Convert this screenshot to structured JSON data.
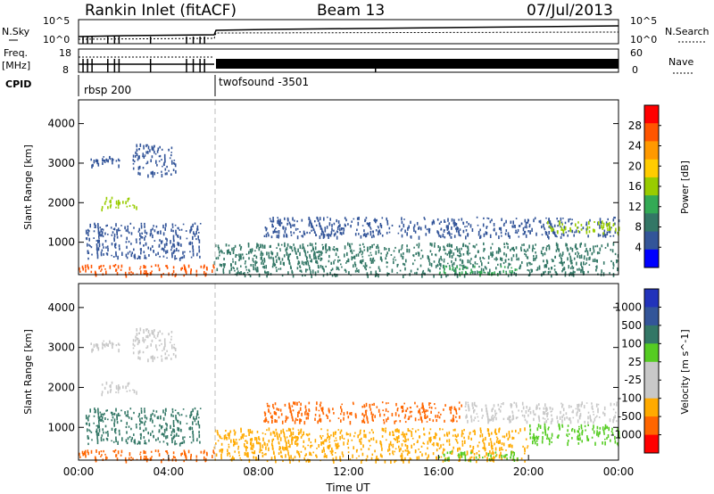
{
  "header": {
    "title": "Rankin Inlet (fitACF)",
    "beam": "Beam 13",
    "date": "07/Jul/2013"
  },
  "status_panel": {
    "nsky_label": "N.Sky",
    "nsky_ticks": [
      "10^5",
      "10^0"
    ],
    "nsearch_label": "N.Search",
    "nsearch_ticks": [
      "10^5",
      "10^0"
    ],
    "freq_label": "Freq.",
    "freq_unit": "[MHz]",
    "freq_ticks": [
      "18",
      "8"
    ],
    "nave_label": "Nave",
    "nave_ticks": [
      "60",
      "0"
    ],
    "cpid_label": "CPID",
    "cpid_modes": [
      "rbsp 200",
      "twofsound -3501"
    ]
  },
  "chart_data": [
    {
      "type": "heatmap",
      "name": "power-panel",
      "ylabel": "Slant Range [km]",
      "xlabel": "",
      "x_range_hours": [
        0,
        24
      ],
      "y_range_km": [
        180,
        4600
      ],
      "y_ticks": [
        "1000",
        "2000",
        "3000",
        "4000"
      ],
      "colorbar_label": "Power [dB]",
      "colorbar_ticks": [
        "28",
        "24",
        "20",
        "16",
        "12",
        "8",
        "4"
      ],
      "colorbar_colors": [
        "#ff0000",
        "#ff5500",
        "#ff9900",
        "#ffcc00",
        "#99cc00",
        "#33aa55",
        "#337766",
        "#335599",
        "#0000ff"
      ],
      "regions": [
        {
          "x0": 0.5,
          "x1": 1.8,
          "y0": 2950,
          "y1": 3200,
          "color": "#335599"
        },
        {
          "x0": 2.4,
          "x1": 4.3,
          "y0": 2700,
          "y1": 3500,
          "color": "#335599"
        },
        {
          "x0": 1.0,
          "x1": 2.6,
          "y0": 1850,
          "y1": 2150,
          "color": "#99cc00"
        },
        {
          "x0": 0.3,
          "x1": 5.4,
          "y0": 600,
          "y1": 1500,
          "color": "#335599"
        },
        {
          "x0": 0.0,
          "x1": 6.0,
          "y0": 180,
          "y1": 450,
          "color": "#ff5500"
        },
        {
          "x0": 8.2,
          "x1": 24.0,
          "y0": 1150,
          "y1": 1650,
          "color": "#335599"
        },
        {
          "x0": 20.8,
          "x1": 24.0,
          "y0": 1250,
          "y1": 1550,
          "color": "#99cc00"
        },
        {
          "x0": 6.0,
          "x1": 24.0,
          "y0": 180,
          "y1": 1000,
          "color": "#337766"
        },
        {
          "x0": 16.0,
          "x1": 19.5,
          "y0": 200,
          "y1": 420,
          "color": "#33aa55"
        }
      ]
    },
    {
      "type": "heatmap",
      "name": "velocity-panel",
      "ylabel": "Slant Range [km]",
      "xlabel": "Time UT",
      "x_ticks": [
        "00:00",
        "04:00",
        "08:00",
        "12:00",
        "16:00",
        "20:00",
        "00:00"
      ],
      "x_range_hours": [
        0,
        24
      ],
      "y_range_km": [
        180,
        4600
      ],
      "y_ticks": [
        "1000",
        "2000",
        "3000",
        "4000"
      ],
      "colorbar_label": "Velocity [m s^-1]",
      "colorbar_ticks": [
        "1000",
        "500",
        "100",
        "25",
        "-25",
        "-100",
        "-500",
        "-1000"
      ],
      "colorbar_colors": [
        "#2233bb",
        "#335599",
        "#337766",
        "#55cc22",
        "#c8c8c8",
        "#c8c8c8",
        "#ffaa00",
        "#ff6600",
        "#ff0000"
      ],
      "regions": [
        {
          "x0": 0.5,
          "x1": 1.8,
          "y0": 2950,
          "y1": 3200,
          "color": "#c8c8c8"
        },
        {
          "x0": 2.4,
          "x1": 4.3,
          "y0": 2700,
          "y1": 3500,
          "color": "#c8c8c8"
        },
        {
          "x0": 1.0,
          "x1": 2.6,
          "y0": 1850,
          "y1": 2150,
          "color": "#c8c8c8"
        },
        {
          "x0": 0.3,
          "x1": 5.4,
          "y0": 600,
          "y1": 1500,
          "color": "#337766"
        },
        {
          "x0": 0.0,
          "x1": 6.0,
          "y0": 180,
          "y1": 450,
          "color": "#ff6600"
        },
        {
          "x0": 8.2,
          "x1": 17.0,
          "y0": 1150,
          "y1": 1650,
          "color": "#ff6600"
        },
        {
          "x0": 17.0,
          "x1": 24.0,
          "y0": 1150,
          "y1": 1650,
          "color": "#c8c8c8"
        },
        {
          "x0": 20.0,
          "x1": 24.0,
          "y0": 600,
          "y1": 1100,
          "color": "#55cc22"
        },
        {
          "x0": 6.0,
          "x1": 20.0,
          "y0": 180,
          "y1": 1000,
          "color": "#ffaa00"
        },
        {
          "x0": 16.0,
          "x1": 19.5,
          "y0": 200,
          "y1": 420,
          "color": "#55cc22"
        }
      ]
    }
  ]
}
